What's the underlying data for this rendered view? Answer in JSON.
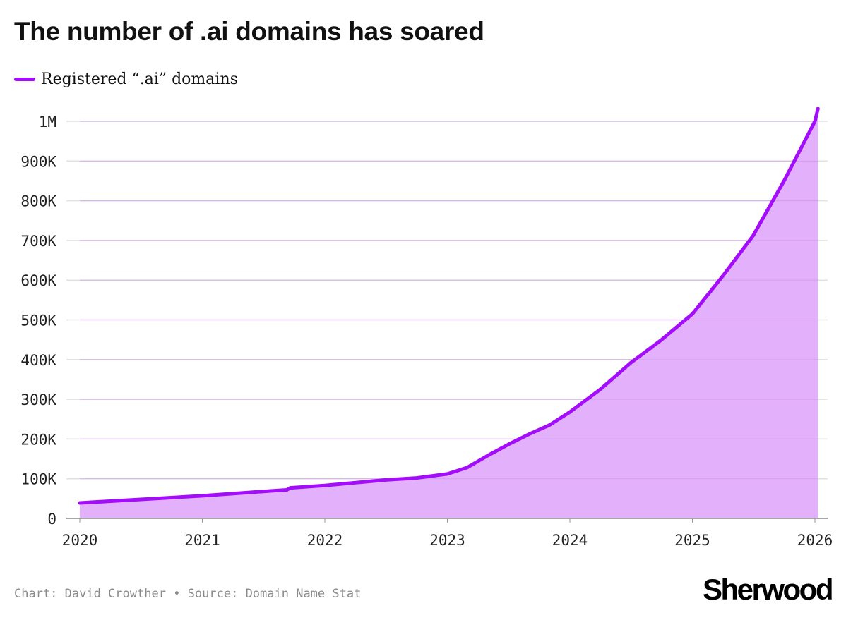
{
  "title": "The number of .ai domains has soared",
  "footer": {
    "credit": "Chart: David Crowther",
    "separator": "•",
    "source": "Source: Domain Name Stat"
  },
  "logo": "Sherwood",
  "colors": {
    "line": "#a30dfa",
    "fill": "#e3b1fc",
    "grid": "#e2e2e2"
  },
  "chart_data": {
    "type": "area",
    "title": "The number of .ai domains has soared",
    "legend": {
      "position": "top-left",
      "entries": [
        "Registered “.ai” domains"
      ]
    },
    "grid": true,
    "xlim": [
      "2020-01-01",
      "2026-01-01"
    ],
    "ylim": [
      0,
      1000000
    ],
    "x_ticks": [
      "2020",
      "2021",
      "2022",
      "2023",
      "2024",
      "2025",
      "2026"
    ],
    "y_ticks": [
      {
        "value": 0,
        "label": "0"
      },
      {
        "value": 100000,
        "label": "100K"
      },
      {
        "value": 200000,
        "label": "200K"
      },
      {
        "value": 300000,
        "label": "300K"
      },
      {
        "value": 400000,
        "label": "400K"
      },
      {
        "value": 500000,
        "label": "500K"
      },
      {
        "value": 600000,
        "label": "600K"
      },
      {
        "value": 700000,
        "label": "700K"
      },
      {
        "value": 800000,
        "label": "800K"
      },
      {
        "value": 900000,
        "label": "900K"
      },
      {
        "value": 1000000,
        "label": "1M"
      }
    ],
    "series": [
      {
        "name": "Registered “.ai” domains",
        "points": [
          [
            "2020-01-01",
            39000
          ],
          [
            "2020-07-01",
            48000
          ],
          [
            "2021-01-01",
            57000
          ],
          [
            "2021-07-01",
            68000
          ],
          [
            "2021-09-10",
            72000
          ],
          [
            "2021-09-20",
            77000
          ],
          [
            "2022-01-01",
            83000
          ],
          [
            "2022-07-01",
            97000
          ],
          [
            "2022-10-01",
            102000
          ],
          [
            "2023-01-01",
            112000
          ],
          [
            "2023-03-01",
            128000
          ],
          [
            "2023-05-01",
            158000
          ],
          [
            "2023-07-01",
            186000
          ],
          [
            "2023-09-01",
            212000
          ],
          [
            "2023-11-01",
            235000
          ],
          [
            "2024-01-01",
            268000
          ],
          [
            "2024-04-01",
            325000
          ],
          [
            "2024-07-01",
            392000
          ],
          [
            "2024-10-01",
            450000
          ],
          [
            "2025-01-01",
            515000
          ],
          [
            "2025-04-01",
            610000
          ],
          [
            "2025-07-01",
            712000
          ],
          [
            "2025-10-01",
            850000
          ],
          [
            "2026-01-01",
            1000000
          ],
          [
            "2026-01-10",
            1032000
          ]
        ]
      }
    ]
  }
}
